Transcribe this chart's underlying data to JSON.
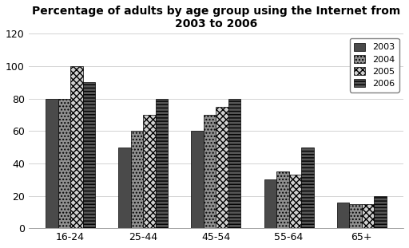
{
  "title": "Percentage of adults by age group using the Internet from\n2003 to 2006",
  "categories": [
    "16-24",
    "25-44",
    "45-54",
    "55-64",
    "65+"
  ],
  "years": [
    "2003",
    "2004",
    "2005",
    "2006"
  ],
  "values": {
    "2003": [
      80,
      50,
      60,
      30,
      16
    ],
    "2004": [
      80,
      60,
      70,
      35,
      15
    ],
    "2005": [
      100,
      70,
      75,
      33,
      15
    ],
    "2006": [
      90,
      80,
      80,
      50,
      20
    ]
  },
  "ylim": [
    0,
    120
  ],
  "yticks": [
    0,
    20,
    40,
    60,
    80,
    100,
    120
  ],
  "hatches": [
    "",
    "....",
    "",
    "----"
  ],
  "colors": [
    "#4a4a4a",
    "#a0a0a0",
    "#d8d8d8",
    "#606060"
  ],
  "background_color": "#ffffff",
  "title_fontsize": 10,
  "figsize": [
    5.12,
    3.11
  ],
  "dpi": 100
}
